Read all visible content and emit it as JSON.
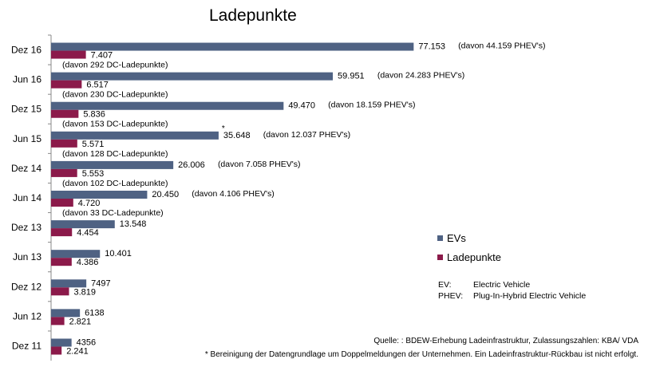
{
  "chart_data": {
    "type": "bar",
    "orientation": "horizontal",
    "title": "Ladepunkte",
    "categories": [
      "Dez 16",
      "Jun 16",
      "Dez 15",
      "Jun 15",
      "Dez 14",
      "Jun 14",
      "Dez 13",
      "Jun 13",
      "Dez 12",
      "Jun 12",
      "Dez 11"
    ],
    "series": [
      {
        "name": "EVs",
        "color": "#4f6283",
        "values": [
          77153,
          59951,
          49470,
          35648,
          26006,
          20450,
          13548,
          10401,
          7497,
          6138,
          4356
        ],
        "labels": [
          "77.153",
          "59.951",
          "49.470",
          "35.648",
          "26.006",
          "20.450",
          "13.548",
          "10.401",
          "7497",
          "6138",
          "4356"
        ],
        "annotations": [
          "(davon 44.159 PHEV's)",
          "(davon 24.283 PHEV's)",
          "(davon 18.159 PHEV's)",
          "(davon 12.037 PHEV's)",
          "(davon 7.058 PHEV's)",
          "(davon 4.106 PHEV's)",
          "",
          "",
          "",
          "",
          ""
        ]
      },
      {
        "name": "Ladepunkte",
        "color": "#8b1a4a",
        "values": [
          7407,
          6517,
          5836,
          5571,
          5553,
          4720,
          4454,
          4386,
          3819,
          2821,
          2241
        ],
        "labels": [
          "7.407",
          "6.517",
          "5.836",
          "5.571",
          "5.553",
          "4.720",
          "4.454",
          "4.386",
          "3.819",
          "2.821",
          "2.241"
        ],
        "annotations": [
          "(davon 292 DC-Ladepunkte)",
          "(davon 230 DC-Ladepunkte)",
          "(davon 153 DC-Ladepunkte)",
          "(davon 128 DC-Ladepunkte)",
          "(davon 102 DC-Ladepunkte)",
          "(davon 33 DC-Ladepunkte)",
          "",
          "",
          "",
          "",
          ""
        ]
      }
    ],
    "asterisk_category": "Jun 15",
    "legend_position": "right",
    "grid": false,
    "xlim": [
      0,
      90000
    ]
  },
  "legend": {
    "items": [
      {
        "label": "EVs",
        "color": "#4f6283"
      },
      {
        "label": "Ladepunkte",
        "color": "#8b1a4a"
      }
    ]
  },
  "abbreviations": [
    {
      "key": "EV:",
      "value": "Electric Vehicle"
    },
    {
      "key": "PHEV:",
      "value": "Plug-In-Hybrid Electric Vehicle"
    }
  ],
  "source": "Quelle: : BDEW-Erhebung Ladeinfrastruktur, Zulassungszahlen: KBA/ VDA",
  "footnote": "* Bereinigung der Datengrundlage um Doppelmeldungen der Unternehmen. Ein Ladeinfrastruktur-Rückbau ist nicht erfolgt."
}
